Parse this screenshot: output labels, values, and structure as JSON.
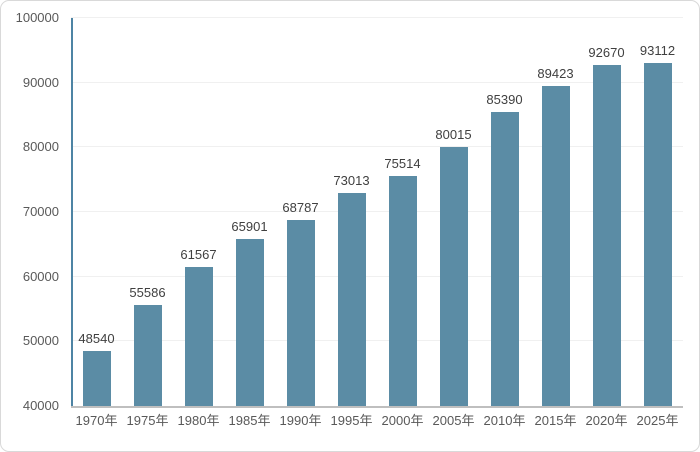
{
  "chart_data": {
    "type": "bar",
    "title": "",
    "xlabel": "",
    "ylabel": "",
    "categories": [
      "1970年",
      "1975年",
      "1980年",
      "1985年",
      "1990年",
      "1995年",
      "2000年",
      "2005年",
      "2010年",
      "2015年",
      "2020年",
      "2025年"
    ],
    "values": [
      48540,
      55586,
      61567,
      65901,
      68787,
      73013,
      75514,
      80015,
      85390,
      89423,
      92670,
      93112
    ],
    "ylim": [
      40000,
      100000
    ],
    "yticks": [
      40000,
      50000,
      60000,
      70000,
      80000,
      90000,
      100000
    ],
    "grid": true,
    "legend": false,
    "data_labels": true
  },
  "colors": {
    "bar_fill": "#5B8CA5",
    "y_axis_line": "#4E84A4",
    "x_axis_line": "#BFBFBF",
    "gridline": "#F0F0F0",
    "tick_label": "#595959",
    "data_label": "#404040",
    "frame_border": "#D9D9D9",
    "background": "#FFFFFF"
  }
}
